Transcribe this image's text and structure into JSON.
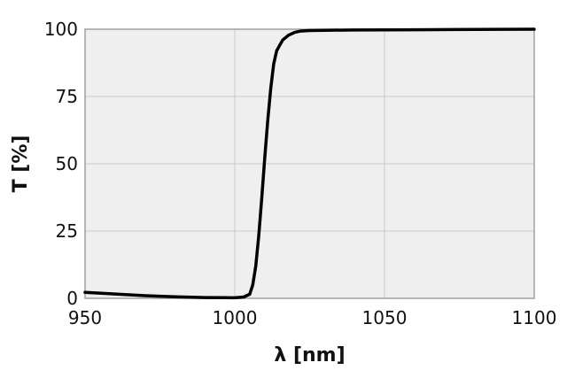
{
  "chart_data": {
    "type": "line",
    "title": "",
    "xlabel": "λ [nm]",
    "ylabel": "T [%]",
    "xlim": [
      950,
      1100
    ],
    "ylim": [
      0,
      100
    ],
    "x_ticks": [
      950,
      1000,
      1050,
      1100
    ],
    "y_ticks": [
      0,
      25,
      50,
      75,
      100
    ],
    "grid": true,
    "legend": "none",
    "colors": {
      "line": "#000000",
      "plot_bg": "#efefef",
      "grid": "#c8c8c8",
      "frame": "#a0a0a0"
    },
    "series": [
      {
        "x": [
          950,
          960,
          970,
          980,
          990,
          1000,
          1003,
          1005,
          1006,
          1007,
          1008,
          1009,
          1010,
          1011,
          1012,
          1013,
          1014,
          1015,
          1016,
          1018,
          1020,
          1022,
          1025,
          1030,
          1040,
          1060,
          1080,
          1100
        ],
        "y": [
          2.2,
          1.6,
          1.0,
          0.6,
          0.3,
          0.2,
          0.5,
          1.5,
          5,
          12,
          23,
          37,
          52,
          66,
          78,
          87,
          92,
          94,
          96,
          97.8,
          98.8,
          99.3,
          99.5,
          99.6,
          99.7,
          99.8,
          99.9,
          100
        ]
      }
    ]
  }
}
